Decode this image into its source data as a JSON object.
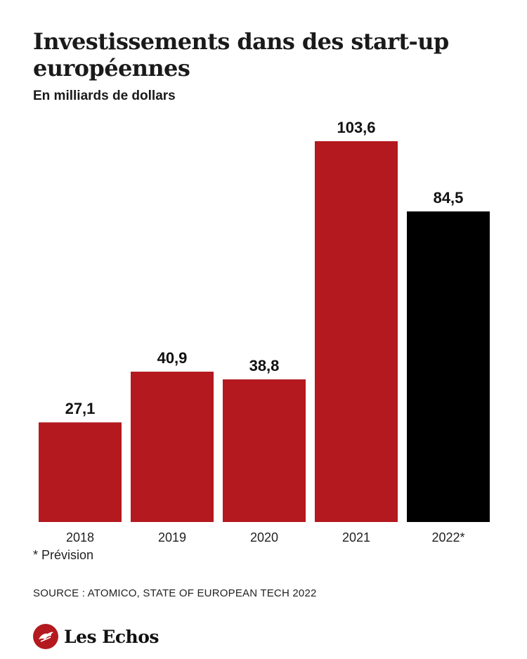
{
  "header": {
    "title": "Investissements dans des start-up européennes",
    "subtitle": "En milliards de dollars"
  },
  "chart_data": {
    "type": "bar",
    "categories": [
      "2018",
      "2019",
      "2020",
      "2021",
      "2022*"
    ],
    "values": [
      27.1,
      40.9,
      38.8,
      103.6,
      84.5
    ],
    "value_labels": [
      "27,1",
      "40,9",
      "38,8",
      "103,6",
      "84,5"
    ],
    "bar_colors": [
      "#b3191e",
      "#b3191e",
      "#b3191e",
      "#b3191e",
      "#000000"
    ],
    "title": "Investissements dans des start-up européennes",
    "subtitle": "En milliards de dollars",
    "ylim": [
      0,
      103.6
    ],
    "grid": false,
    "legend": "none"
  },
  "footer": {
    "note": "* Prévision",
    "source": "SOURCE : ATOMICO, STATE OF EUROPEAN TECH 2022",
    "brand": "Les Echos"
  },
  "colors": {
    "accent_red": "#b3191e",
    "forecast_black": "#000000"
  },
  "icons": {
    "logo": "les-echos-logo-icon"
  }
}
